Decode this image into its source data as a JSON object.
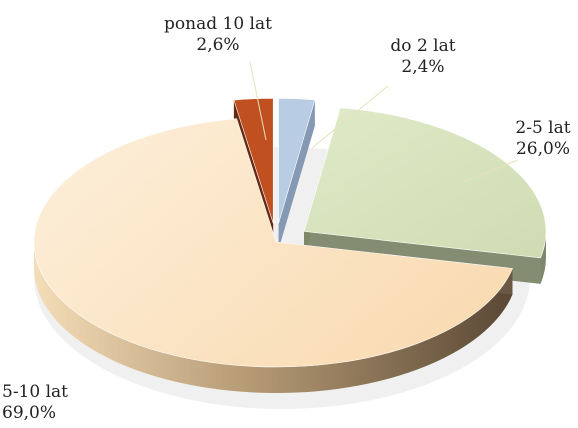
{
  "chart_data": {
    "type": "pie",
    "style": "3d-exploded",
    "title": "",
    "slices": [
      {
        "label": "do 2 lat",
        "value": 2.4,
        "value_text": "2,4%",
        "color": "#b8cce4",
        "side_color": "#7f94b0"
      },
      {
        "label": "2-5 lat",
        "value": 26.0,
        "value_text": "26,0%",
        "color": "#d7e4bd",
        "side_color": "#7d8769"
      },
      {
        "label": "5-10 lat",
        "value": 69.0,
        "value_text": "69,0%",
        "color": "#fce4c2",
        "side_color": "#6e5a43"
      },
      {
        "label": "ponad 10 lat",
        "value": 2.6,
        "value_text": "2,6%",
        "color": "#c0501f",
        "side_color": "#5e1f08"
      }
    ],
    "legend": "none",
    "data_labels": "outside with leader lines"
  }
}
